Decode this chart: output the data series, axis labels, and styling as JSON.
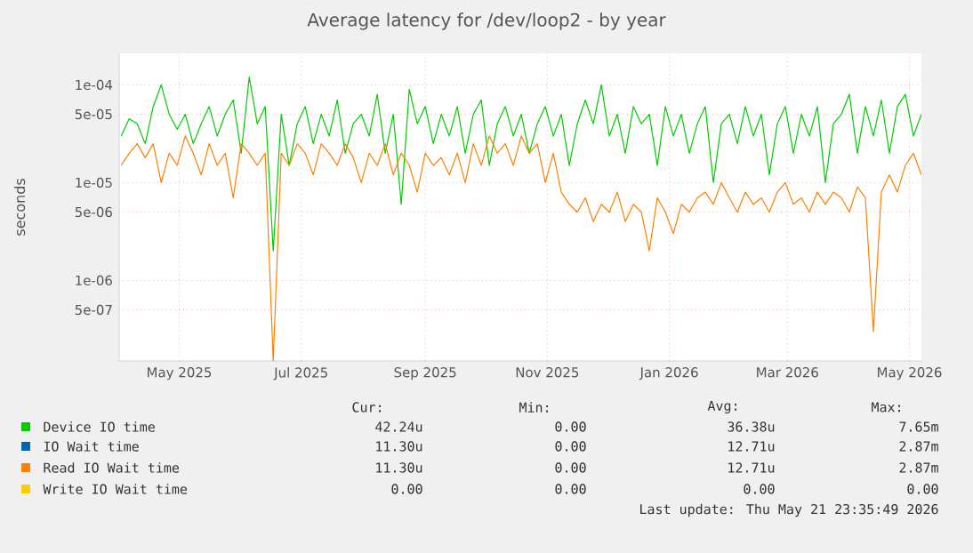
{
  "chart_data": {
    "type": "line",
    "title": "Average latency for /dev/loop2 - by year",
    "ylabel": "seconds",
    "log": "y",
    "grid": true,
    "legend": "bottom",
    "xlim": [
      "2025-04-15",
      "2026-05-21"
    ],
    "xticks": [
      {
        "value": "2025-05-15",
        "label": "May 2025"
      },
      {
        "value": "2025-07-15",
        "label": "Jul 2025"
      },
      {
        "value": "2025-09-15",
        "label": "Sep 2025"
      },
      {
        "value": "2025-11-15",
        "label": "Nov 2025"
      },
      {
        "value": "2026-01-15",
        "label": "Jan 2026"
      },
      {
        "value": "2026-03-15",
        "label": "Mar 2026"
      },
      {
        "value": "2026-05-15",
        "label": "May 2026"
      }
    ],
    "ylim": [
      1.5e-07,
      0.00021
    ],
    "yticks": [
      {
        "value": 5e-07,
        "label": "5e-07"
      },
      {
        "value": 1e-06,
        "label": "1e-06"
      },
      {
        "value": 5e-06,
        "label": "5e-06"
      },
      {
        "value": 1e-05,
        "label": "1e-05"
      },
      {
        "value": 5e-05,
        "label": "5e-05"
      },
      {
        "value": 0.0001,
        "label": "1e-04"
      }
    ],
    "x": [
      "2025-04-16",
      "2025-04-20",
      "2025-04-24",
      "2025-04-28",
      "2025-05-02",
      "2025-05-06",
      "2025-05-10",
      "2025-05-14",
      "2025-05-18",
      "2025-05-22",
      "2025-05-26",
      "2025-05-30",
      "2025-06-03",
      "2025-06-07",
      "2025-06-11",
      "2025-06-15",
      "2025-06-19",
      "2025-06-23",
      "2025-06-27",
      "2025-07-01",
      "2025-07-05",
      "2025-07-09",
      "2025-07-13",
      "2025-07-17",
      "2025-07-21",
      "2025-07-25",
      "2025-07-29",
      "2025-08-02",
      "2025-08-06",
      "2025-08-10",
      "2025-08-14",
      "2025-08-18",
      "2025-08-22",
      "2025-08-26",
      "2025-08-30",
      "2025-09-03",
      "2025-09-07",
      "2025-09-11",
      "2025-09-15",
      "2025-09-19",
      "2025-09-23",
      "2025-09-27",
      "2025-10-01",
      "2025-10-05",
      "2025-10-09",
      "2025-10-13",
      "2025-10-17",
      "2025-10-21",
      "2025-10-25",
      "2025-10-29",
      "2025-11-02",
      "2025-11-06",
      "2025-11-10",
      "2025-11-14",
      "2025-11-18",
      "2025-11-22",
      "2025-11-26",
      "2025-11-30",
      "2025-12-04",
      "2025-12-08",
      "2025-12-12",
      "2025-12-16",
      "2025-12-20",
      "2025-12-24",
      "2025-12-28",
      "2026-01-01",
      "2026-01-05",
      "2026-01-09",
      "2026-01-13",
      "2026-01-17",
      "2026-01-21",
      "2026-01-25",
      "2026-01-29",
      "2026-02-02",
      "2026-02-06",
      "2026-02-10",
      "2026-02-14",
      "2026-02-18",
      "2026-02-22",
      "2026-02-26",
      "2026-03-02",
      "2026-03-06",
      "2026-03-10",
      "2026-03-14",
      "2026-03-18",
      "2026-03-22",
      "2026-03-26",
      "2026-03-30",
      "2026-04-03",
      "2026-04-07",
      "2026-04-11",
      "2026-04-15",
      "2026-04-19",
      "2026-04-23",
      "2026-04-27",
      "2026-05-01",
      "2026-05-05",
      "2026-05-09",
      "2026-05-13",
      "2026-05-17",
      "2026-05-21"
    ],
    "series": [
      {
        "name": "Device IO time",
        "color": "#00cc00",
        "values": [
          3e-05,
          4.5e-05,
          4e-05,
          2.5e-05,
          6e-05,
          0.0001,
          5e-05,
          3.5e-05,
          5e-05,
          2.5e-05,
          4e-05,
          6e-05,
          3e-05,
          5e-05,
          7e-05,
          2e-05,
          0.00012,
          4e-05,
          6e-05,
          2e-06,
          5e-05,
          1.5e-05,
          4e-05,
          6e-05,
          2.5e-05,
          5e-05,
          3e-05,
          7e-05,
          2e-05,
          4e-05,
          5e-05,
          3e-05,
          8e-05,
          2e-05,
          5e-05,
          6e-06,
          9e-05,
          4e-05,
          6e-05,
          2.5e-05,
          5e-05,
          3e-05,
          6e-05,
          2e-05,
          5e-05,
          7e-05,
          1.5e-05,
          4e-05,
          6e-05,
          3e-05,
          5e-05,
          2e-05,
          4e-05,
          6e-05,
          3e-05,
          5e-05,
          1.5e-05,
          4e-05,
          7e-05,
          4e-05,
          0.0001,
          3e-05,
          5e-05,
          2e-05,
          6e-05,
          4e-05,
          5e-05,
          1.5e-05,
          6e-05,
          3e-05,
          5e-05,
          2e-05,
          4e-05,
          6e-05,
          1e-05,
          4e-05,
          5e-05,
          2.5e-05,
          6e-05,
          3e-05,
          5e-05,
          1.2e-05,
          4e-05,
          6e-05,
          2e-05,
          5e-05,
          3e-05,
          6e-05,
          1e-05,
          4e-05,
          5e-05,
          8e-05,
          2e-05,
          6e-05,
          3e-05,
          7e-05,
          2e-05,
          6e-05,
          8e-05,
          3e-05,
          5e-05
        ]
      },
      {
        "name": "IO Wait time",
        "color": "#0066b3",
        "values": [
          null,
          null,
          null,
          null,
          null,
          null,
          null,
          null,
          null,
          null,
          null,
          null,
          null,
          null,
          null,
          null,
          null,
          null,
          null,
          null,
          null,
          null,
          null,
          null,
          null,
          null,
          null,
          null,
          null,
          null,
          null,
          null,
          null,
          null,
          null,
          null,
          null,
          null,
          null,
          null,
          null,
          null,
          null,
          null,
          null,
          null,
          null,
          null,
          null,
          null,
          null,
          null,
          null,
          null,
          null,
          null,
          null,
          null,
          null,
          null,
          null,
          null,
          null,
          null,
          null,
          null,
          null,
          null,
          null,
          null,
          null,
          null,
          null,
          null,
          null,
          null,
          null,
          null,
          null,
          null,
          null,
          null,
          null,
          null,
          null,
          null,
          null,
          null,
          null,
          null,
          null,
          null,
          null,
          null,
          null,
          null,
          null,
          null,
          null,
          null,
          null
        ]
      },
      {
        "name": "Read IO Wait time",
        "color": "#ff8000",
        "values": [
          1.5e-05,
          2e-05,
          2.5e-05,
          1.8e-05,
          2.5e-05,
          1e-05,
          2e-05,
          1.5e-05,
          3e-05,
          2e-05,
          1.2e-05,
          2.5e-05,
          1.5e-05,
          2e-05,
          7e-06,
          2.5e-05,
          2e-05,
          1.5e-05,
          2e-05,
          1.5e-07,
          2e-05,
          1.5e-05,
          2.5e-05,
          2e-05,
          1.2e-05,
          2.5e-05,
          2e-05,
          1.5e-05,
          2.5e-05,
          1.8e-05,
          1e-05,
          2e-05,
          1.5e-05,
          2.5e-05,
          1.2e-05,
          2e-05,
          1.5e-05,
          8e-06,
          2e-05,
          1.5e-05,
          1.8e-05,
          1.2e-05,
          2e-05,
          1e-05,
          2.5e-05,
          1.5e-05,
          3e-05,
          2e-05,
          2.5e-05,
          1.5e-05,
          3e-05,
          2e-05,
          2.5e-05,
          1e-05,
          2e-05,
          8e-06,
          6e-06,
          5e-06,
          7e-06,
          4e-06,
          6e-06,
          5e-06,
          8e-06,
          4e-06,
          6e-06,
          5e-06,
          2e-06,
          7e-06,
          5e-06,
          3e-06,
          6e-06,
          5e-06,
          7e-06,
          8e-06,
          6e-06,
          1e-05,
          7e-06,
          5e-06,
          8e-06,
          6e-06,
          7e-06,
          5e-06,
          8e-06,
          1e-05,
          6e-06,
          7e-06,
          5e-06,
          8e-06,
          6e-06,
          8e-06,
          7e-06,
          5e-06,
          9e-06,
          7e-06,
          3e-07,
          8e-06,
          1.2e-05,
          8e-06,
          1.5e-05,
          2e-05,
          1.2e-05
        ]
      },
      {
        "name": "Write IO Wait time",
        "color": "#ffcc00",
        "values": [
          null,
          null,
          null,
          null,
          null,
          null,
          null,
          null,
          null,
          null,
          null,
          null,
          null,
          null,
          null,
          null,
          null,
          null,
          null,
          null,
          null,
          null,
          null,
          null,
          null,
          null,
          null,
          null,
          null,
          null,
          null,
          null,
          null,
          null,
          null,
          null,
          null,
          null,
          null,
          null,
          null,
          null,
          null,
          null,
          null,
          null,
          null,
          null,
          null,
          null,
          null,
          null,
          null,
          null,
          null,
          null,
          null,
          null,
          null,
          null,
          null,
          null,
          null,
          null,
          null,
          null,
          null,
          null,
          null,
          null,
          null,
          null,
          null,
          null,
          null,
          null,
          null,
          null,
          null,
          null,
          null,
          null,
          null,
          null,
          null,
          null,
          null,
          null,
          null,
          null,
          null,
          null,
          null,
          null,
          null,
          null,
          null,
          null,
          null,
          null,
          null
        ]
      }
    ],
    "annotations": [
      "Cur:",
      "Min:",
      "Avg:",
      "Max:",
      "42.24u",
      "0.00",
      "36.38u",
      "7.65m",
      "11.30u",
      "0.00",
      "12.71u",
      "2.87m",
      "11.30u",
      "0.00",
      "12.71u",
      "2.87m",
      "0.00",
      "0.00",
      "0.00",
      "0.00",
      "Last update: Thu May 21 23:35:49 2026"
    ]
  }
}
